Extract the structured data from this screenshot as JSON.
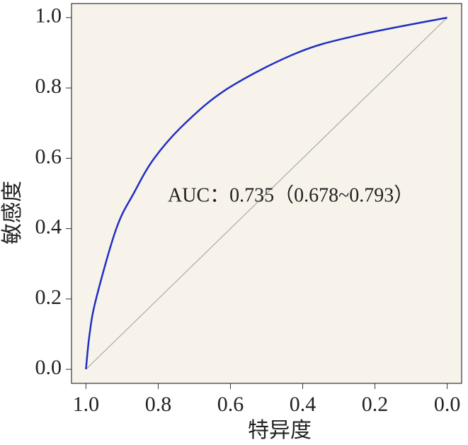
{
  "chart_data": {
    "type": "line",
    "xlabel": "特异度",
    "ylabel": "敏感度",
    "annotation": "AUC：0.735（0.678~0.793）",
    "x": [
      1.0,
      0.99,
      0.972,
      0.916,
      0.868,
      0.811,
      0.725,
      0.605,
      0.415,
      0.247,
      0.0
    ],
    "series": [
      {
        "color": "#1f2fc4",
        "values": [
          0.0,
          0.1,
          0.2,
          0.4,
          0.5,
          0.6,
          0.7,
          0.8,
          0.9,
          0.95,
          1.0
        ]
      }
    ],
    "reference": {
      "x": [
        1,
        0
      ],
      "values": [
        0,
        1
      ],
      "color": "#aaaaaa"
    },
    "xlim": [
      1.04,
      -0.04
    ],
    "ylim": [
      -0.04,
      1.04
    ],
    "xticks": [
      {
        "value": 1,
        "label": "1.0"
      },
      0.8,
      0.6,
      0.4,
      0.2,
      {
        "value": 0,
        "label": "0.0"
      }
    ],
    "yticks": [
      {
        "value": 0,
        "label": "0.0"
      },
      0.2,
      0.4,
      0.6,
      0.8,
      {
        "value": 1,
        "label": "1.0"
      }
    ],
    "background": "#f8f3ea"
  }
}
